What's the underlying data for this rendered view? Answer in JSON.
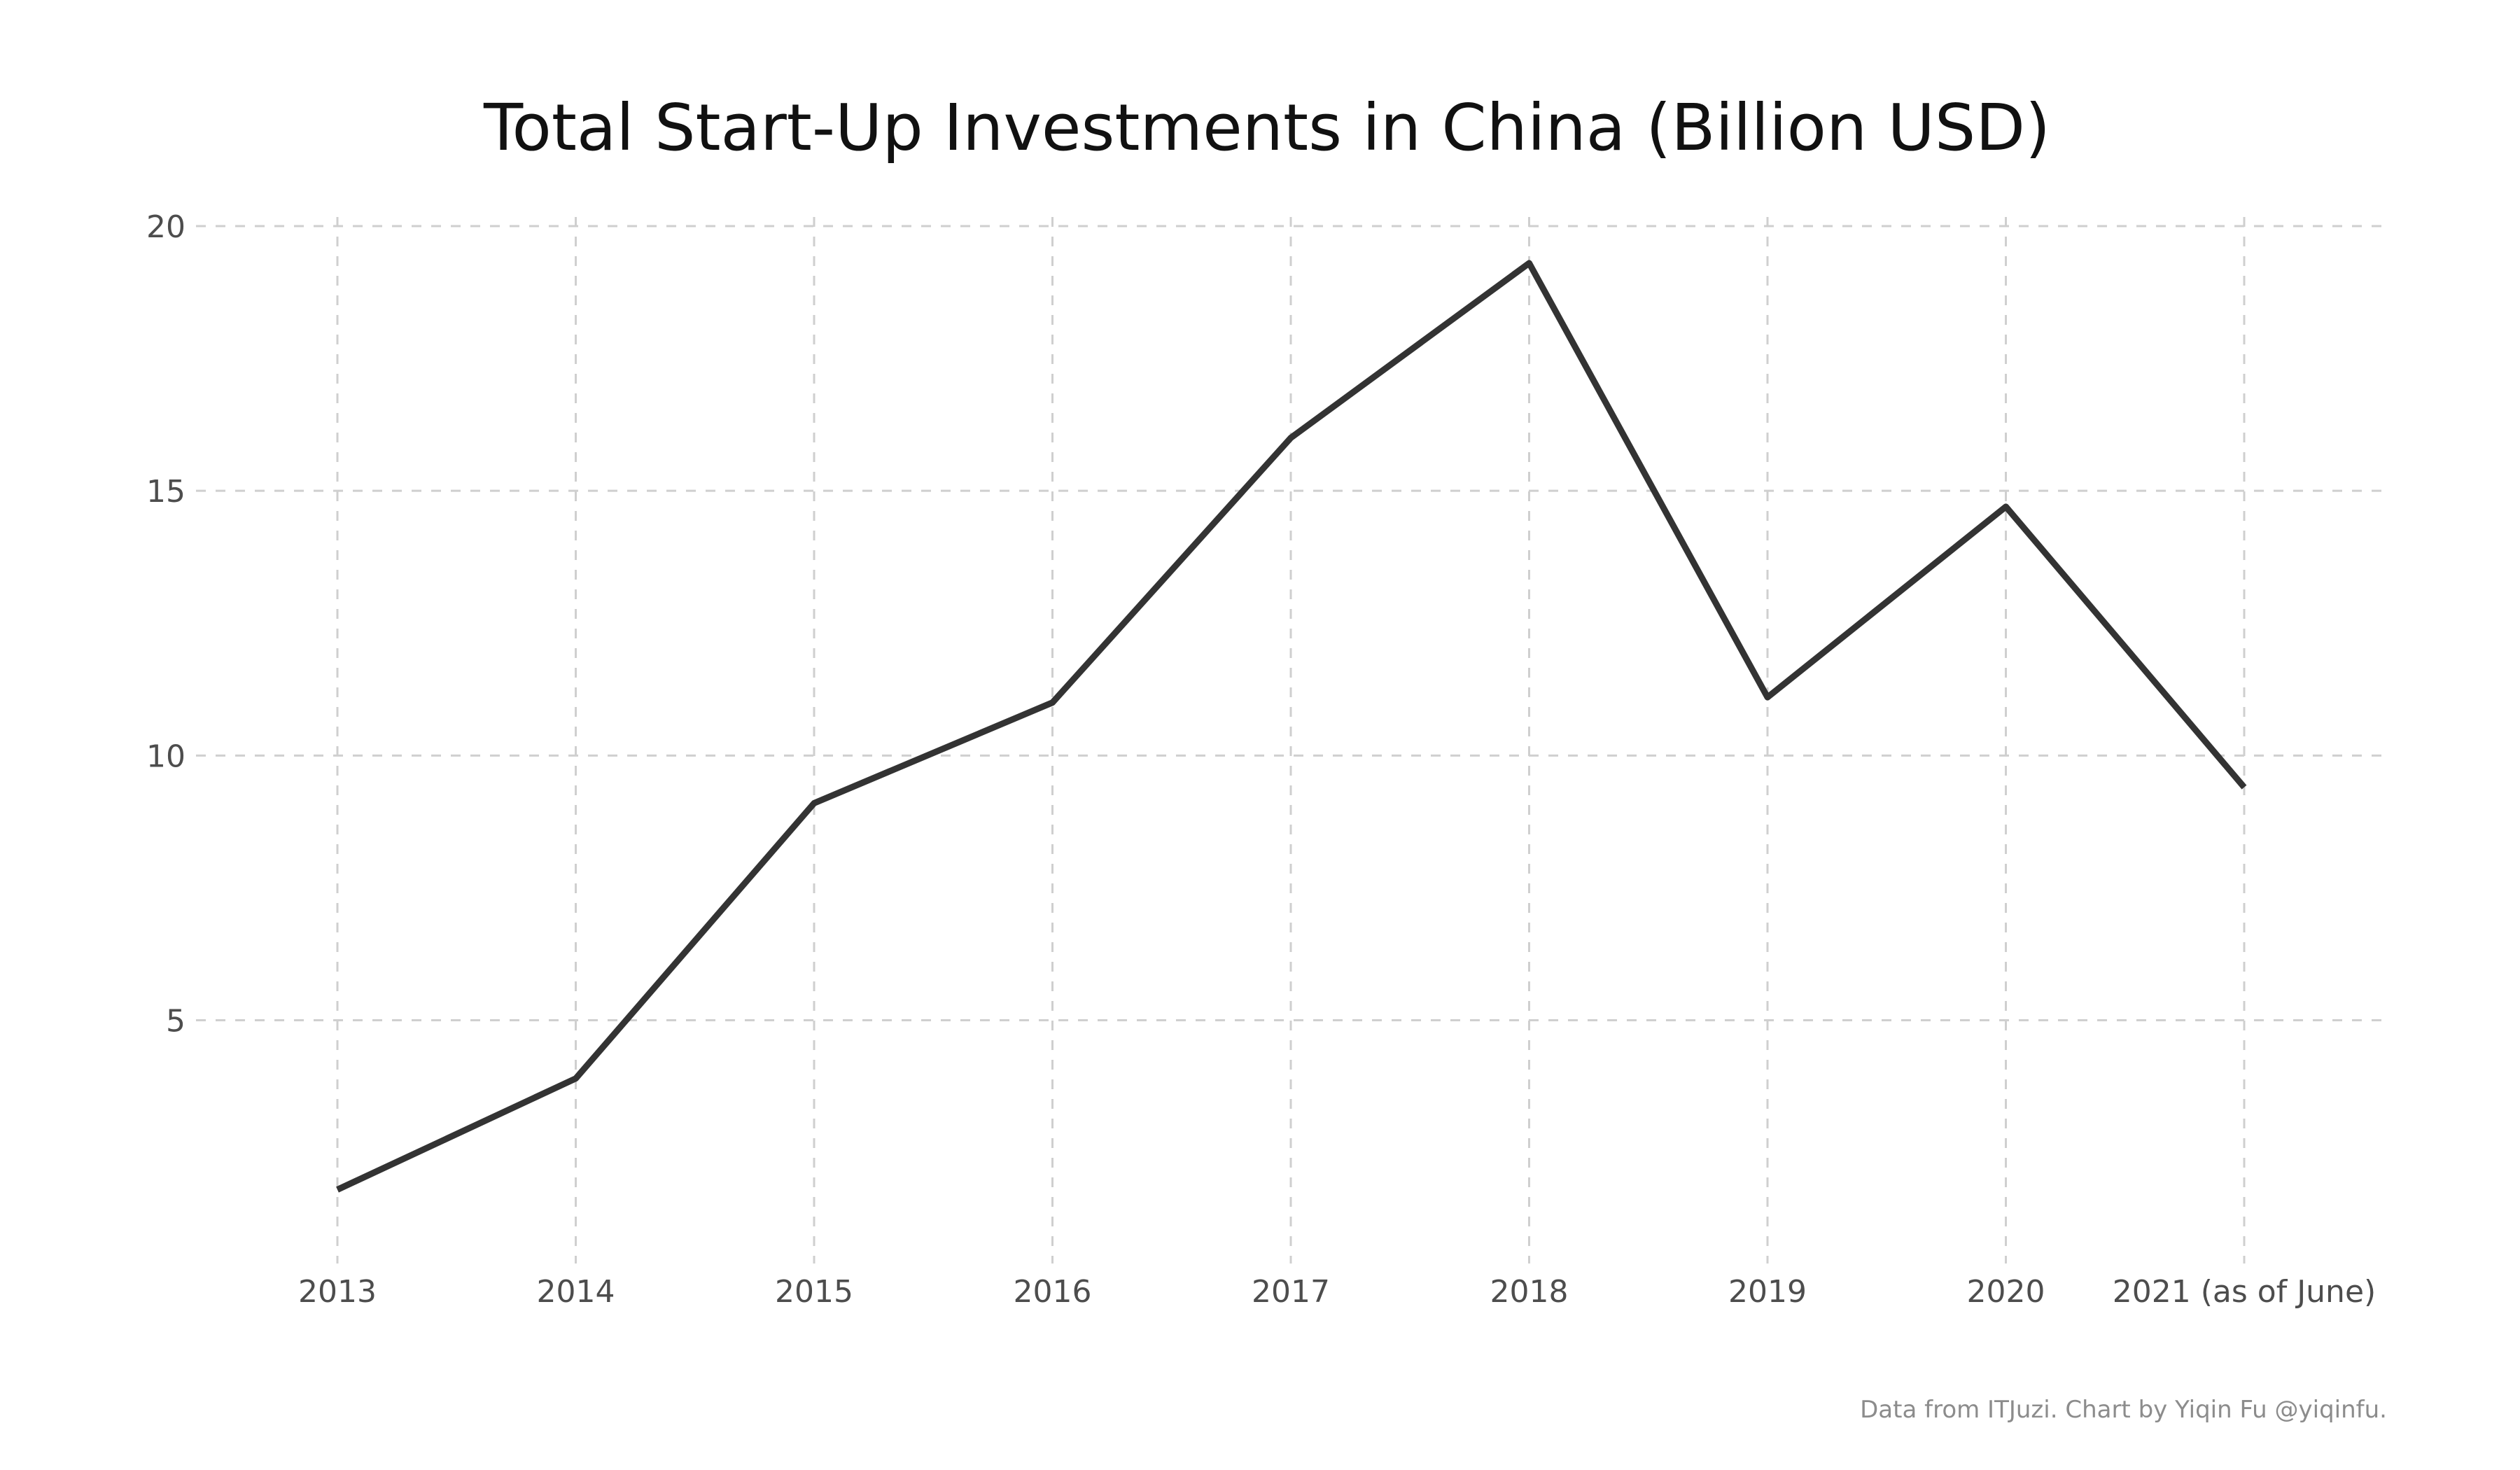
{
  "chart_data": {
    "type": "line",
    "title": "Total Start-Up Investments in China (Billion USD)",
    "xlabel": "",
    "ylabel": "",
    "categories": [
      "2013",
      "2014",
      "2015",
      "2016",
      "2017",
      "2018",
      "2019",
      "2020",
      "2021 (as of June)"
    ],
    "series": [
      {
        "values": [
          1.8,
          3.9,
          9.1,
          11.0,
          16.0,
          19.3,
          11.1,
          14.7,
          9.4
        ]
      }
    ],
    "ylim": [
      1.0,
      20.0
    ],
    "yticks": [
      5,
      10,
      15,
      20
    ],
    "ytick_labels": [
      "5",
      "10",
      "15",
      "20"
    ],
    "grid": true,
    "legend": "none",
    "caption": "Data from ITJuzi. Chart by Yiqin Fu @yiqinfu.",
    "colors": {
      "line": "#333333",
      "grid": "#cfcfcf",
      "background": "#ffffff"
    }
  }
}
